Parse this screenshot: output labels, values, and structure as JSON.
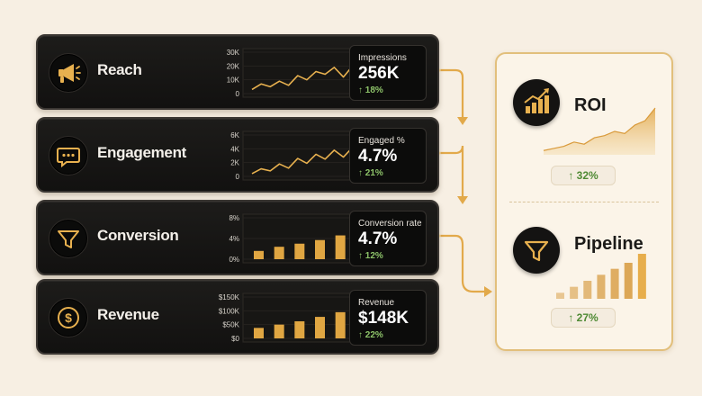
{
  "stages": [
    {
      "key": "reach",
      "label": "Reach",
      "icon": "megaphone-icon",
      "metric_label": "Impressions",
      "metric_value": "256K",
      "metric_change": "↑ 18%",
      "chart_data": {
        "type": "line",
        "ytick_labels": [
          "30K",
          "20K",
          "10K",
          "0"
        ],
        "ylim": [
          0,
          30
        ],
        "values": [
          3,
          7,
          5,
          9,
          6,
          13,
          10,
          16,
          14,
          19,
          12,
          20,
          17,
          26
        ]
      }
    },
    {
      "key": "engagement",
      "label": "Engagement",
      "icon": "chat-bubble-icon",
      "metric_label": "Engaged %",
      "metric_value": "4.7%",
      "metric_change": "↑ 21%",
      "chart_data": {
        "type": "line",
        "ytick_labels": [
          "6K",
          "4K",
          "2K",
          "0"
        ],
        "ylim": [
          0,
          6
        ],
        "values": [
          0.4,
          1.1,
          0.8,
          1.8,
          1.2,
          2.6,
          1.9,
          3.2,
          2.5,
          3.8,
          2.8,
          4.2,
          3.6,
          5.0
        ]
      }
    },
    {
      "key": "conversion",
      "label": "Conversion",
      "icon": "funnel-icon",
      "metric_label": "Conversion rate",
      "metric_value": "4.7%",
      "metric_change": "↑ 12%",
      "chart_data": {
        "type": "bar",
        "ytick_labels": [
          "8%",
          "4%",
          "0%"
        ],
        "ylim": [
          0,
          8
        ],
        "values": [
          1.6,
          2.4,
          3.0,
          3.7,
          4.6,
          5.5
        ]
      }
    },
    {
      "key": "revenue",
      "label": "Revenue",
      "icon": "dollar-coin-icon",
      "metric_label": "Revenue",
      "metric_value": "$148K",
      "metric_change": "↑ 22%",
      "chart_data": {
        "type": "bar",
        "ytick_labels": [
          "$150K",
          "$100K",
          "$50K",
          "$0"
        ],
        "ylim": [
          0,
          150
        ],
        "values": [
          38,
          50,
          62,
          78,
          95,
          118
        ]
      }
    }
  ],
  "outcomes": [
    {
      "key": "roi",
      "title": "ROI",
      "icon": "bar-trend-icon",
      "change": "↑ 32%",
      "chart_data": {
        "type": "area",
        "values": [
          2,
          3,
          4,
          6,
          5,
          8,
          9,
          11,
          10,
          14,
          16,
          22
        ]
      }
    },
    {
      "key": "pipeline",
      "title": "Pipeline",
      "icon": "funnel-icon",
      "change": "↑ 27%",
      "chart_data": {
        "type": "bar",
        "values": [
          1,
          2,
          3,
          4,
          5,
          6,
          7.5
        ]
      }
    }
  ],
  "colors": {
    "gold": "#e8b14f",
    "gold_dark": "#c98a2c",
    "positive": "#8ec46a"
  }
}
